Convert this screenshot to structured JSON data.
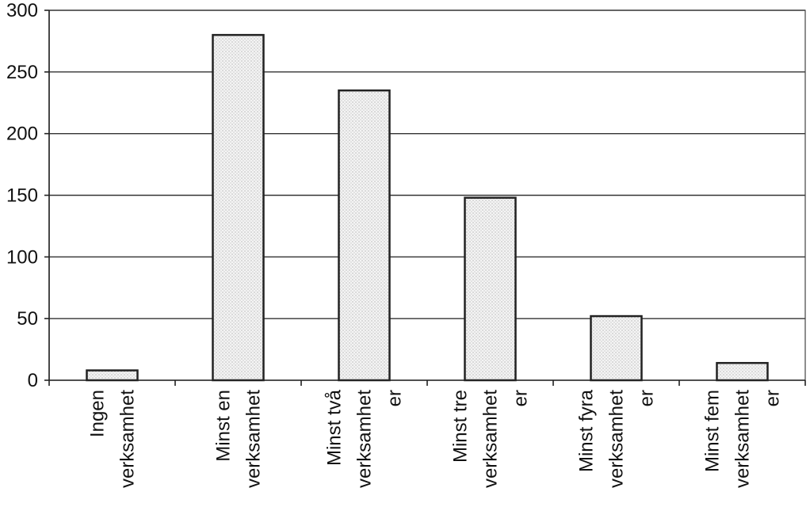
{
  "chart_data": {
    "type": "bar",
    "title": "",
    "xlabel": "",
    "ylabel": "",
    "categories": [
      [
        "Ingen",
        "verksamhet"
      ],
      [
        "Minst en",
        "verksamhet"
      ],
      [
        "Minst två",
        "verksamhet",
        "er"
      ],
      [
        "Minst tre",
        "verksamhet",
        "er"
      ],
      [
        "Minst fyra",
        "verksamhet",
        "er"
      ],
      [
        "Minst fem",
        "verksamhet",
        "er"
      ]
    ],
    "values": [
      8,
      280,
      235,
      148,
      52,
      14
    ],
    "ylim": [
      0,
      300
    ],
    "yticks": [
      0,
      50,
      100,
      150,
      200,
      250,
      300
    ],
    "grid": true,
    "legend": "none"
  }
}
